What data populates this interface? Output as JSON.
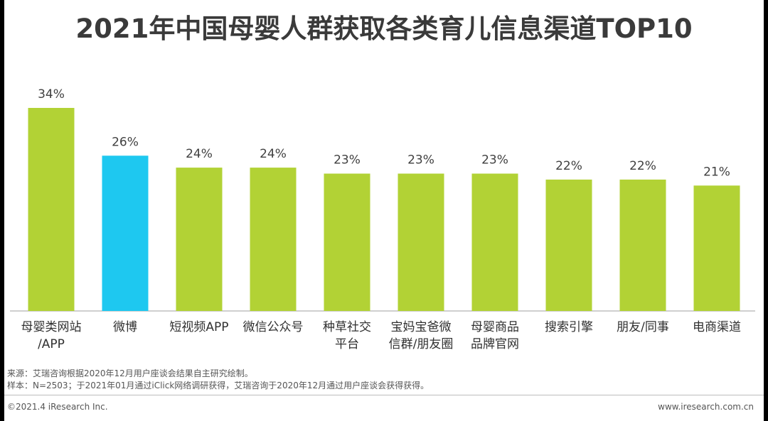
{
  "title": "2021年中国母婴人群获取各类育儿信息渠道TOP10",
  "chart_data": {
    "type": "bar",
    "categories": [
      [
        "母婴类网站",
        "/APP"
      ],
      [
        "微博"
      ],
      [
        "短视频APP"
      ],
      [
        "微信公众号"
      ],
      [
        "种草社交",
        "平台"
      ],
      [
        "宝妈宝爸微",
        "信群/朋友圈"
      ],
      [
        "母婴商品",
        "品牌官网"
      ],
      [
        "搜索引擎"
      ],
      [
        "朋友/同事"
      ],
      [
        "电商渠道"
      ]
    ],
    "values": [
      34,
      26,
      24,
      24,
      23,
      23,
      23,
      22,
      22,
      21
    ],
    "value_labels": [
      "34%",
      "26%",
      "24%",
      "24%",
      "23%",
      "23%",
      "23%",
      "22%",
      "22%",
      "21%"
    ],
    "highlight_index": 1,
    "ylim": [
      0,
      40
    ],
    "grid": false,
    "colors": {
      "default": "#b2d235",
      "highlight": "#1ec8f0"
    }
  },
  "notes": {
    "source": "来源：艾瑞咨询根据2020年12月用户座谈会结果自主研究绘制。",
    "sample": "样本：N=2503；于2021年01月通过iClick网络调研获得，艾瑞咨询于2020年12月通过用户座谈会获得获得。"
  },
  "footer": {
    "copyright": "©2021.4 iResearch Inc.",
    "website": "www.iresearch.com.cn"
  }
}
